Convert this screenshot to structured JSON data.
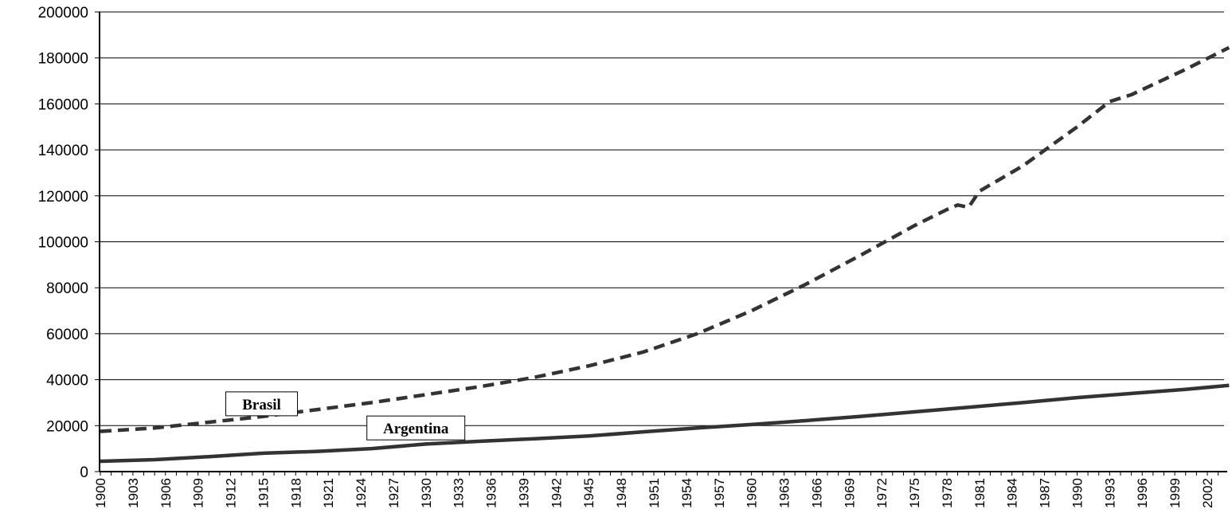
{
  "chart_data": {
    "type": "line",
    "title": "",
    "xlabel": "",
    "ylabel": "",
    "x_range": [
      1900,
      2004
    ],
    "ylim": [
      0,
      200000
    ],
    "y_ticks": [
      0,
      20000,
      40000,
      60000,
      80000,
      100000,
      120000,
      140000,
      160000,
      180000,
      200000
    ],
    "x_ticks": [
      1900,
      1903,
      1906,
      1909,
      1912,
      1915,
      1918,
      1921,
      1924,
      1927,
      1930,
      1933,
      1936,
      1939,
      1942,
      1945,
      1948,
      1951,
      1954,
      1957,
      1960,
      1963,
      1966,
      1969,
      1972,
      1975,
      1978,
      1981,
      1984,
      1987,
      1990,
      1993,
      1996,
      1999,
      2002
    ],
    "grid": "horizontal",
    "legend": "inline-labels",
    "series": [
      {
        "name": "Brasil",
        "style": "dashed",
        "color": "#333333",
        "x": [
          1900,
          1905,
          1910,
          1915,
          1920,
          1925,
          1930,
          1935,
          1940,
          1945,
          1950,
          1955,
          1960,
          1965,
          1970,
          1975,
          1978,
          1979,
          1980,
          1981,
          1985,
          1990,
          1993,
          1995,
          2000,
          2004
        ],
        "y": [
          17500,
          19000,
          21500,
          24000,
          27000,
          30000,
          33500,
          37000,
          41000,
          46000,
          52000,
          60000,
          70000,
          81500,
          94000,
          107000,
          114000,
          116000,
          115000,
          122000,
          133000,
          150000,
          161000,
          164000,
          175000,
          184500
        ]
      },
      {
        "name": "Argentina",
        "style": "solid",
        "color": "#333333",
        "x": [
          1900,
          1905,
          1910,
          1915,
          1920,
          1925,
          1930,
          1935,
          1940,
          1945,
          1950,
          1955,
          1960,
          1965,
          1970,
          1975,
          1980,
          1985,
          1990,
          1995,
          2000,
          2004
        ],
        "y": [
          4500,
          5200,
          6500,
          8000,
          8800,
          10000,
          12000,
          13200,
          14300,
          15500,
          17300,
          19000,
          20500,
          22200,
          24000,
          26000,
          28000,
          30000,
          32200,
          34000,
          35800,
          37500
        ]
      }
    ],
    "labels": [
      {
        "series": "Brasil",
        "text": "Brasil",
        "x": 1912,
        "y": 29500
      },
      {
        "series": "Argentina",
        "text": "Argentina",
        "x": 1925,
        "y": 19000
      }
    ]
  }
}
